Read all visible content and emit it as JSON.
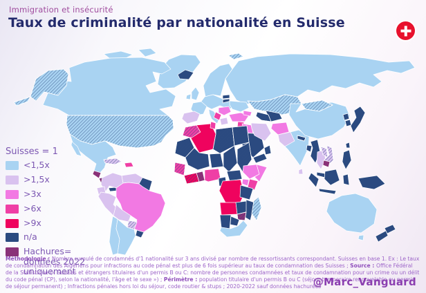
{
  "header": {
    "kicker": "Immigration et insécurité",
    "title": "Taux de criminalité par nationalité en Suisse"
  },
  "flag": {
    "name": "swiss-flag",
    "color": "#E8112D",
    "cross_color": "#FFFFFF"
  },
  "legend": {
    "title": "Suisses = 1",
    "items": [
      {
        "label": "<1,5x",
        "cat": "lt15"
      },
      {
        "label": ">1,5x",
        "cat": "gt15"
      },
      {
        "label": ">3x",
        "cat": "gt3"
      },
      {
        "label": ">6x",
        "cat": "gt6"
      },
      {
        "label": ">9x",
        "cat": "gt9"
      },
      {
        "label": "n/a",
        "cat": "na"
      },
      {
        "label": "Hachures= données 2022 uniquement",
        "cat": "plum"
      }
    ]
  },
  "categories": {
    "lt15": {
      "label": "<1,5x",
      "color": "#A9D3F2"
    },
    "gt15": {
      "label": ">1,5x",
      "color": "#D9C2EF"
    },
    "gt3": {
      "label": ">3x",
      "color": "#F279E3"
    },
    "gt6": {
      "label": ">6x",
      "color": "#EF3FA5"
    },
    "gt9": {
      "label": ">9x",
      "color": "#EF035E"
    },
    "na": {
      "label": "n/a",
      "color": "#2B4A80"
    },
    "plum": {
      "label": "Hachures= données 2022 uniquement",
      "color": "#8A3178"
    }
  },
  "map": {
    "hatch_meaning": "données 2022 uniquement",
    "regions": {
      "greenland": "lt15",
      "arctic-islands-1": "lt15",
      "arctic-islands-2": "lt15",
      "canada": "lt15",
      "alaska": "lt15*",
      "aleutians": "lt15*",
      "usa": "lt15*",
      "mexico": "lt15",
      "baja": "lt15",
      "guatemala": "plum",
      "nicaragua": "plum*",
      "costa-rica": "gt9",
      "panama": "na",
      "cuba": "gt15*",
      "hispaniola": "gt6",
      "iceland": "na",
      "colombia": "gt15",
      "venezuela": "gt15",
      "guyana": "na",
      "ecuador": "gt15",
      "peru": "gt15",
      "brazil": "gt3",
      "bolivia": "gt15",
      "paraguay": "gt15*",
      "uruguay": "na",
      "chile": "lt15",
      "argentina": "lt15",
      "uk": "lt15",
      "ireland": "lt15",
      "scandinavia": "lt15",
      "estonia": "na",
      "latvia": "na*",
      "svalbard": "lt15*",
      "russia": "lt15",
      "europe-central": "lt15",
      "ukraine": "lt15",
      "france": "lt15",
      "iberia": "gt15",
      "italy": "lt15",
      "balkans-east": "gt3",
      "balkans-west": "gt6",
      "greece": "gt15",
      "turkey": "gt3",
      "caucasus": "gt3",
      "levant": "gt6",
      "iraq": "gt3",
      "saudi-arabia": "na",
      "yemen": "na",
      "oman": "na*",
      "iran": "gt15",
      "kazakhstan": "lt15*",
      "uzbekistan": "na",
      "turkmenistan": "na*",
      "afghanistan": "gt3",
      "pakistan": "gt15",
      "india": "lt15",
      "nepal": "na*",
      "bangladesh": "na",
      "sri-lanka": "gt15",
      "myanmar": "na",
      "thailand": "gt15",
      "laos": "gt15*",
      "vietnam": "gt15*",
      "cambodia": "plum",
      "malaysia": "na*",
      "sumatra": "na",
      "java": "na",
      "borneo": "na",
      "sulawesi": "na",
      "philippines": "na",
      "new-guinea": "na",
      "china": "lt15",
      "mongolia": "lt15*",
      "north-korea": "na",
      "south-korea": "na*",
      "japan": "na",
      "taiwan": "na",
      "australia": "lt15",
      "tasmania": "lt15",
      "nz-north": "na",
      "nz-south": "na",
      "morocco": "gt6*",
      "mauritania": "na*",
      "algeria": "gt9",
      "tunisia": "gt6",
      "libya": "na*",
      "egypt": "na*",
      "mali": "na",
      "niger": "na",
      "chad": "na",
      "sudan": "na*",
      "senegal-guinea": "gt6*",
      "ivory-coast": "gt9*",
      "ghana": "plum",
      "nigeria": "gt6",
      "cameroon": "na",
      "central-african-republic": "na",
      "ethiopia": "gt3",
      "somalia": "gt3",
      "kenya": "gt6",
      "uganda": "gt3",
      "drc": "gt9",
      "tanzania": "na",
      "angola": "gt9",
      "zambia": "na",
      "mozambique": "na",
      "zimbabwe": "plum*",
      "namibia": "na",
      "botswana": "na",
      "south-africa": "lt15",
      "madagascar": "lt15*"
    }
  },
  "footer": {
    "parts": [
      {
        "bold": "Méthodologie : ",
        "text": "Nombre cumulé de condamnés d'1 nationalité sur 3 ans divisé par nombre de ressortissants correspondant. Suisses en base 1. Ex : Le taux de condamnation des Algériens pour infractions au code pénal est plus de 6 fois supérieur au taux de condamnation des Suisses ; "
      },
      {
        "bold": "Source : ",
        "text": "Office Fédéral de la Statistique (« Suisses et étrangers titulaires d'un permis B ou C: nombre de personnes condamnées et taux de condamnation pour un crime ou un délit du code pénal (CP), selon la nationalité, l'âge et le sexe ») ; "
      },
      {
        "bold": "Périmètre : ",
        "text": "population titulaire d'un permis B ou C (séjour temporaire renouvelable ou permis de séjour permanent) ; Infractions pénales hors loi du séjour, code routier & stups ; 2020-2022 sauf données hachurées"
      }
    ],
    "handle": "@Marc_Vanguard"
  }
}
